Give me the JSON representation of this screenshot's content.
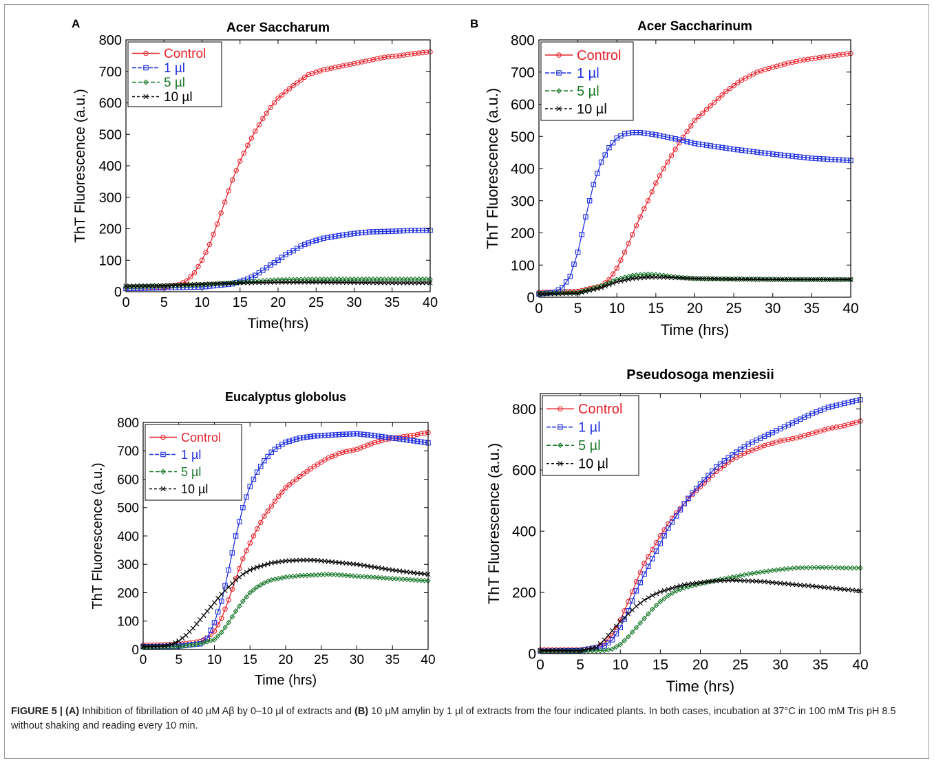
{
  "chart_data": [
    {
      "type": "line",
      "panel_letter": "A",
      "title": "Acer Saccharum",
      "xlabel": "Time(hrs)",
      "ylabel": "ThT Fluorescence (a.u.)",
      "xlim": [
        0,
        40
      ],
      "ylim": [
        0,
        800
      ],
      "xticks": [
        0,
        5,
        10,
        15,
        20,
        25,
        30,
        35,
        40
      ],
      "yticks": [
        0,
        100,
        200,
        300,
        400,
        500,
        600,
        700,
        800
      ],
      "legend_position": "top-left",
      "series": [
        {
          "name": "Control",
          "color": "#e8202a",
          "marker": "circle",
          "x": [
            0,
            5,
            7,
            8,
            9,
            10,
            11,
            12,
            13,
            14,
            15,
            16,
            17,
            18,
            19,
            20,
            22,
            24,
            26,
            28,
            30,
            32,
            34,
            36,
            38,
            40
          ],
          "y": [
            10,
            15,
            22,
            35,
            60,
            100,
            150,
            215,
            285,
            355,
            415,
            465,
            510,
            550,
            585,
            615,
            655,
            690,
            705,
            715,
            725,
            735,
            745,
            750,
            757,
            762
          ]
        },
        {
          "name": "1 µl",
          "color": "#1f2fe0",
          "marker": "square",
          "x": [
            0,
            10,
            14,
            16,
            17,
            18,
            19,
            20,
            21,
            22,
            23,
            24,
            25,
            26,
            28,
            30,
            32,
            35,
            38,
            40
          ],
          "y": [
            10,
            15,
            25,
            40,
            52,
            68,
            85,
            100,
            118,
            130,
            145,
            155,
            163,
            170,
            178,
            185,
            190,
            192,
            195,
            195
          ]
        },
        {
          "name": "5 µl",
          "color": "#1b7a2c",
          "marker": "diamond",
          "x": [
            0,
            5,
            10,
            15,
            20,
            25,
            30,
            35,
            40
          ],
          "y": [
            15,
            18,
            22,
            30,
            38,
            40,
            40,
            40,
            40
          ]
        },
        {
          "name": "10 µl",
          "color": "#000000",
          "marker": "x",
          "x": [
            0,
            5,
            10,
            15,
            20,
            25,
            30,
            35,
            40
          ],
          "y": [
            18,
            20,
            24,
            28,
            30,
            30,
            29,
            28,
            28
          ]
        }
      ]
    },
    {
      "type": "line",
      "panel_letter": "B",
      "title": "Acer Saccharinum",
      "xlabel": "Time (hrs)",
      "ylabel": "ThT Fluorescence (a.u.)",
      "xlim": [
        0,
        40
      ],
      "ylim": [
        0,
        800
      ],
      "xticks": [
        0,
        5,
        10,
        15,
        20,
        25,
        30,
        35,
        40
      ],
      "yticks": [
        0,
        100,
        200,
        300,
        400,
        500,
        600,
        700,
        800
      ],
      "legend_position": "top-left",
      "series": [
        {
          "name": "Control",
          "color": "#e8202a",
          "marker": "circle",
          "x": [
            0,
            5,
            8,
            9,
            10,
            11,
            12,
            13,
            14,
            15,
            16,
            17,
            18,
            19,
            20,
            22,
            24,
            26,
            28,
            30,
            32,
            34,
            36,
            38,
            40
          ],
          "y": [
            15,
            18,
            35,
            55,
            90,
            140,
            195,
            250,
            300,
            355,
            400,
            440,
            480,
            515,
            550,
            595,
            640,
            675,
            700,
            715,
            728,
            738,
            745,
            752,
            758
          ]
        },
        {
          "name": "1 µl",
          "color": "#1f2fe0",
          "marker": "square",
          "x": [
            0,
            2,
            3,
            4,
            5,
            6,
            7,
            8,
            9,
            10,
            11,
            12,
            13,
            15,
            18,
            20,
            25,
            30,
            35,
            40
          ],
          "y": [
            10,
            15,
            30,
            65,
            140,
            250,
            350,
            420,
            465,
            495,
            508,
            512,
            512,
            505,
            490,
            478,
            460,
            445,
            432,
            425
          ]
        },
        {
          "name": "5 µl",
          "color": "#1b7a2c",
          "marker": "diamond",
          "x": [
            0,
            5,
            8,
            10,
            12,
            14,
            16,
            18,
            20,
            25,
            30,
            35,
            40
          ],
          "y": [
            12,
            15,
            35,
            55,
            68,
            72,
            68,
            62,
            58,
            57,
            56,
            55,
            55
          ]
        },
        {
          "name": "10 µl",
          "color": "#000000",
          "marker": "x",
          "x": [
            0,
            5,
            8,
            10,
            12,
            14,
            16,
            18,
            20,
            25,
            30,
            35,
            40
          ],
          "y": [
            10,
            12,
            30,
            48,
            58,
            62,
            62,
            60,
            58,
            56,
            55,
            55,
            55
          ]
        }
      ]
    },
    {
      "type": "line",
      "title": "Eucalyptus globolus",
      "xlabel": "Time (hrs)",
      "ylabel": "ThT Fluorescence (a.u.)",
      "xlim": [
        0,
        40
      ],
      "ylim": [
        0,
        800
      ],
      "xticks": [
        0,
        5,
        10,
        15,
        20,
        25,
        30,
        35,
        40
      ],
      "yticks": [
        0,
        100,
        200,
        300,
        400,
        500,
        600,
        700,
        800
      ],
      "legend_position": "top-left",
      "series": [
        {
          "name": "Control",
          "color": "#e8202a",
          "marker": "circle",
          "x": [
            0,
            5,
            8,
            9,
            10,
            11,
            12,
            13,
            14,
            15,
            16,
            17,
            18,
            19,
            20,
            22,
            24,
            26,
            28,
            30,
            32,
            34,
            36,
            38,
            40
          ],
          "y": [
            15,
            18,
            28,
            40,
            65,
            110,
            175,
            250,
            320,
            375,
            425,
            470,
            505,
            540,
            570,
            610,
            645,
            675,
            695,
            705,
            725,
            740,
            748,
            755,
            765
          ]
        },
        {
          "name": "1 µl",
          "color": "#1f2fe0",
          "marker": "square",
          "x": [
            0,
            5,
            8,
            9,
            10,
            11,
            12,
            13,
            14,
            15,
            16,
            17,
            18,
            19,
            20,
            22,
            24,
            26,
            28,
            30,
            32,
            34,
            36,
            38,
            40
          ],
          "y": [
            10,
            12,
            20,
            40,
            95,
            170,
            280,
            400,
            500,
            575,
            625,
            665,
            695,
            715,
            730,
            745,
            752,
            755,
            758,
            760,
            755,
            748,
            742,
            735,
            728
          ]
        },
        {
          "name": "5 µl",
          "color": "#1b7a2c",
          "marker": "diamond",
          "x": [
            0,
            5,
            8,
            10,
            11,
            12,
            13,
            14,
            15,
            16,
            17,
            18,
            20,
            22,
            24,
            26,
            28,
            30,
            32,
            35,
            38,
            40
          ],
          "y": [
            8,
            10,
            20,
            35,
            60,
            95,
            135,
            170,
            200,
            220,
            235,
            245,
            255,
            260,
            262,
            265,
            262,
            258,
            255,
            250,
            245,
            242
          ]
        },
        {
          "name": "10 µl",
          "color": "#000000",
          "marker": "x",
          "x": [
            0,
            3,
            4,
            5,
            6,
            7,
            8,
            9,
            10,
            11,
            12,
            13,
            14,
            15,
            16,
            18,
            20,
            22,
            24,
            26,
            28,
            30,
            32,
            35,
            38,
            40
          ],
          "y": [
            10,
            12,
            18,
            30,
            50,
            75,
            105,
            135,
            165,
            195,
            220,
            245,
            265,
            280,
            290,
            305,
            312,
            315,
            315,
            310,
            305,
            300,
            292,
            280,
            270,
            265
          ]
        }
      ]
    },
    {
      "type": "line",
      "title": "Pseudosoga menziesii",
      "xlabel": "Time (hrs)",
      "ylabel": "ThT Fluorescence (a.u.)",
      "xlim": [
        0,
        40
      ],
      "ylim": [
        0,
        850
      ],
      "xticks": [
        0,
        5,
        10,
        15,
        20,
        25,
        30,
        35,
        40
      ],
      "yticks": [
        0,
        200,
        400,
        600,
        800
      ],
      "legend_position": "top-left",
      "series": [
        {
          "name": "Control",
          "color": "#e8202a",
          "marker": "circle",
          "x": [
            0,
            5,
            7,
            8,
            9,
            10,
            11,
            12,
            13,
            14,
            15,
            16,
            17,
            18,
            19,
            20,
            22,
            24,
            26,
            28,
            30,
            32,
            34,
            36,
            38,
            40
          ],
          "y": [
            12,
            12,
            20,
            35,
            60,
            110,
            170,
            235,
            295,
            340,
            385,
            425,
            460,
            490,
            520,
            545,
            595,
            635,
            660,
            680,
            695,
            705,
            720,
            735,
            745,
            760
          ]
        },
        {
          "name": "1 µl",
          "color": "#1f2fe0",
          "marker": "square",
          "x": [
            0,
            5,
            8,
            9,
            10,
            11,
            12,
            13,
            14,
            15,
            16,
            17,
            18,
            19,
            20,
            22,
            24,
            26,
            28,
            30,
            32,
            34,
            36,
            38,
            40
          ],
          "y": [
            8,
            10,
            25,
            45,
            85,
            140,
            205,
            260,
            310,
            360,
            410,
            450,
            490,
            525,
            555,
            610,
            650,
            685,
            710,
            735,
            760,
            785,
            805,
            818,
            830
          ]
        },
        {
          "name": "5 µl",
          "color": "#1b7a2c",
          "marker": "diamond",
          "x": [
            0,
            5,
            8,
            9,
            10,
            11,
            12,
            13,
            14,
            15,
            16,
            17,
            18,
            20,
            22,
            24,
            26,
            28,
            30,
            32,
            35,
            38,
            40
          ],
          "y": [
            8,
            8,
            10,
            15,
            30,
            55,
            85,
            115,
            145,
            170,
            190,
            205,
            215,
            228,
            240,
            250,
            260,
            268,
            275,
            280,
            282,
            280,
            280
          ]
        },
        {
          "name": "10 µl",
          "color": "#000000",
          "marker": "x",
          "x": [
            0,
            5,
            7,
            8,
            9,
            10,
            11,
            12,
            13,
            14,
            15,
            16,
            17,
            18,
            20,
            22,
            24,
            26,
            28,
            30,
            32,
            35,
            38,
            40
          ],
          "y": [
            10,
            10,
            20,
            45,
            75,
            105,
            130,
            155,
            175,
            190,
            202,
            210,
            218,
            225,
            232,
            238,
            240,
            238,
            235,
            230,
            225,
            218,
            210,
            205
          ]
        }
      ]
    }
  ],
  "caption": {
    "label": "FIGURE 5 | ",
    "part_a_label": "(A)",
    "part_a_text": " Inhibition of fibrillation of 40 μM Aβ by 0–10 μl of extracts and ",
    "part_b_label": "(B)",
    "part_b_text": " 10 μM amylin by 1 μl of extracts from the four indicated plants. In both cases, incubation at 37°C in 100 mM Tris pH 8.5 without shaking and reading every 10 min."
  }
}
